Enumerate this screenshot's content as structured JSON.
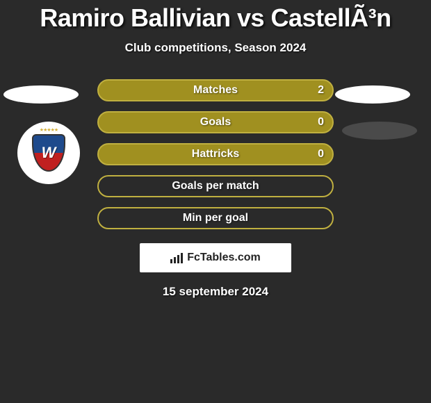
{
  "title": "Ramiro Ballivian vs CastellÃ³n",
  "subtitle": "Club competitions, Season 2024",
  "date": "15 september 2024",
  "brand": "FcTables.com",
  "colors": {
    "background": "#2a2a2a",
    "bar_fill": "#a09020",
    "bar_border": "#c0b040",
    "text": "#ffffff",
    "ellipse_white": "#ffffff",
    "ellipse_grey": "#4a4a4a",
    "badge_bg": "#ffffff"
  },
  "stats": [
    {
      "label": "Matches",
      "value": "2",
      "filled": true
    },
    {
      "label": "Goals",
      "value": "0",
      "filled": true
    },
    {
      "label": "Hattricks",
      "value": "0",
      "filled": true
    },
    {
      "label": "Goals per match",
      "value": "",
      "filled": false
    },
    {
      "label": "Min per goal",
      "value": "",
      "filled": false
    }
  ]
}
